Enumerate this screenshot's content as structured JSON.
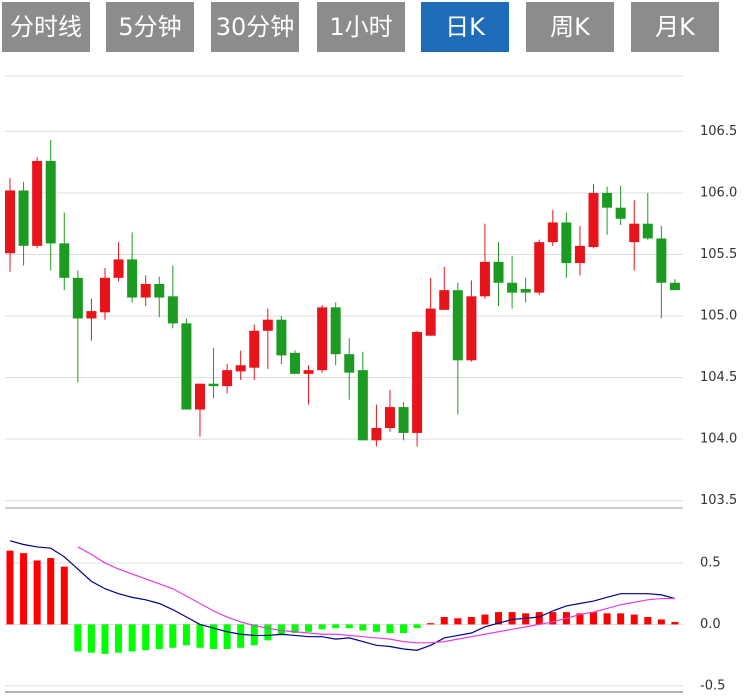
{
  "tabs": [
    "分时线",
    "5分钟",
    "30分钟",
    "1小时",
    "日K",
    "周K",
    "月K"
  ],
  "active_tab": 4,
  "chart_data": [
    {
      "type": "candlestick",
      "up_color": "#e8141b",
      "down_color": "#1c9a22",
      "open": [
        105.51,
        106.02,
        105.57,
        106.26,
        105.59,
        105.31,
        104.98,
        105.03,
        105.31,
        105.46,
        105.15,
        105.26,
        105.16,
        104.94,
        104.24,
        104.45,
        104.43,
        104.55,
        104.58,
        104.88,
        104.97,
        104.7,
        104.53,
        104.56,
        105.07,
        104.69,
        104.56,
        103.99,
        104.09,
        104.26,
        104.05,
        104.84,
        105.05,
        105.21,
        104.64,
        105.16,
        105.44,
        105.27,
        105.22,
        105.19,
        105.6,
        105.76,
        105.43,
        105.56,
        106.0,
        105.88,
        105.6,
        105.75,
        105.63,
        105.27
      ],
      "high": [
        106.12,
        106.09,
        106.29,
        106.43,
        105.84,
        105.37,
        105.14,
        105.39,
        105.6,
        105.68,
        105.33,
        105.32,
        105.41,
        104.98,
        104.45,
        104.74,
        104.61,
        104.72,
        104.93,
        105.06,
        105.0,
        104.72,
        104.6,
        105.09,
        105.11,
        104.82,
        104.71,
        104.28,
        104.4,
        104.3,
        104.88,
        105.31,
        105.4,
        105.27,
        105.29,
        105.75,
        105.6,
        105.49,
        105.31,
        105.62,
        105.86,
        105.84,
        105.73,
        106.07,
        106.05,
        106.06,
        105.94,
        106.0,
        105.73,
        105.3
      ],
      "low": [
        105.36,
        105.41,
        105.55,
        105.37,
        105.21,
        104.46,
        104.8,
        104.97,
        105.28,
        105.11,
        105.08,
        104.99,
        104.9,
        104.24,
        104.02,
        104.33,
        104.37,
        104.48,
        104.48,
        104.57,
        104.61,
        104.53,
        104.28,
        104.54,
        104.6,
        104.32,
        103.99,
        103.94,
        104.06,
        103.99,
        103.94,
        104.84,
        105.05,
        104.2,
        104.63,
        105.14,
        105.08,
        105.06,
        105.11,
        105.17,
        105.57,
        105.31,
        105.33,
        105.55,
        105.66,
        105.74,
        105.37,
        105.62,
        104.98,
        105.21
      ],
      "close": [
        106.02,
        105.57,
        106.26,
        105.59,
        105.31,
        104.98,
        105.04,
        105.31,
        105.46,
        105.15,
        105.26,
        105.15,
        104.94,
        104.24,
        104.45,
        104.43,
        104.56,
        104.6,
        104.88,
        104.97,
        104.68,
        104.53,
        104.56,
        105.07,
        104.69,
        104.54,
        103.99,
        104.09,
        104.26,
        104.05,
        104.87,
        105.06,
        105.21,
        104.64,
        105.16,
        105.44,
        105.27,
        105.19,
        105.19,
        105.6,
        105.76,
        105.43,
        105.57,
        106.0,
        105.88,
        105.79,
        105.75,
        105.63,
        105.27,
        105.21
      ],
      "ylim": [
        103.44,
        106.95
      ],
      "yticks": [
        106.5,
        {
          "value": 106,
          "label": "106.0"
        },
        105.5,
        {
          "value": 105,
          "label": "105.0"
        },
        104.5,
        {
          "value": 104,
          "label": "104.0"
        },
        103.5
      ],
      "grid": true
    },
    {
      "type": "macd",
      "values": [
        0.6,
        0.58,
        0.52,
        0.54,
        0.47,
        -0.22,
        -0.23,
        -0.24,
        -0.23,
        -0.22,
        -0.21,
        -0.2,
        -0.19,
        -0.17,
        -0.19,
        -0.2,
        -0.2,
        -0.19,
        -0.17,
        -0.13,
        -0.09,
        -0.07,
        -0.06,
        -0.04,
        -0.03,
        -0.03,
        -0.05,
        -0.06,
        -0.07,
        -0.07,
        -0.03,
        0.01,
        0.06,
        0.05,
        0.06,
        0.08,
        0.1,
        0.1,
        0.09,
        0.1,
        0.1,
        0.1,
        0.09,
        0.1,
        0.09,
        0.09,
        0.08,
        0.06,
        0.04,
        0.02
      ],
      "up_color": "#ff0000",
      "down_color": "#00ff00",
      "series": [
        {
          "color": "#00008b",
          "values": [
            0.68,
            0.65,
            0.63,
            0.62,
            0.55,
            0.45,
            0.35,
            0.29,
            0.25,
            0.22,
            0.2,
            0.17,
            0.12,
            0.06,
            0.0,
            -0.03,
            -0.06,
            -0.08,
            -0.09,
            -0.09,
            -0.08,
            -0.09,
            -0.1,
            -0.1,
            -0.12,
            -0.11,
            -0.14,
            -0.17,
            -0.18,
            -0.2,
            -0.21,
            -0.17,
            -0.11,
            -0.09,
            -0.07,
            -0.02,
            0.01,
            0.04,
            0.05,
            0.06,
            0.11,
            0.15,
            0.17,
            0.19,
            0.22,
            0.25,
            0.25,
            0.25,
            0.24,
            0.21
          ]
        },
        {
          "color": "#e040e0",
          "values": [
            null,
            null,
            null,
            null,
            null,
            0.63,
            0.57,
            0.5,
            0.45,
            0.41,
            0.37,
            0.33,
            0.29,
            0.23,
            0.17,
            0.11,
            0.06,
            0.02,
            -0.01,
            -0.03,
            -0.05,
            -0.06,
            -0.07,
            -0.08,
            -0.08,
            -0.09,
            -0.1,
            -0.11,
            -0.12,
            -0.14,
            -0.15,
            -0.15,
            -0.14,
            -0.12,
            -0.1,
            -0.08,
            -0.06,
            -0.04,
            -0.02,
            0.0,
            0.02,
            0.05,
            0.08,
            0.1,
            0.13,
            0.16,
            0.18,
            0.2,
            0.21,
            0.21
          ]
        }
      ],
      "ylim": [
        -0.55,
        0.89
      ],
      "yticks": [
        0.5,
        {
          "value": 0,
          "label": "0.0"
        },
        -0.5
      ],
      "grid": true
    }
  ]
}
